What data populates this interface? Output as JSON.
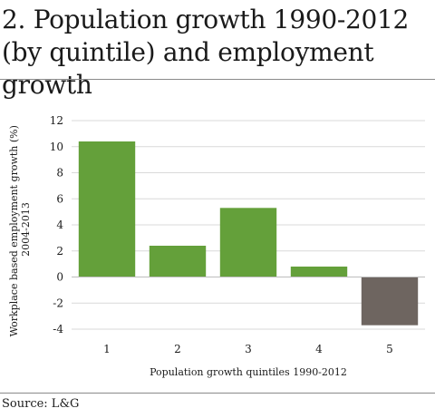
{
  "title": "2. Population growth 1990-2012 (by quintile) and employment growth",
  "source": "Source: L&G",
  "chart_data": {
    "type": "bar",
    "categories": [
      "1",
      "2",
      "3",
      "4",
      "5"
    ],
    "values": [
      10.4,
      2.4,
      5.3,
      0.8,
      -3.7
    ],
    "colors": [
      "#64a03a",
      "#64a03a",
      "#64a03a",
      "#64a03a",
      "#6e6560"
    ],
    "ylim": [
      -4,
      12
    ],
    "yticks": [
      12,
      10,
      8,
      6,
      4,
      2,
      0,
      -2,
      -4
    ],
    "xlabel": "Population growth quintiles 1990-2012",
    "ylabel_lines": [
      "Workplace based employment growth (%)",
      "2004-2013"
    ],
    "grid": true,
    "gridline_color": "#d9d9d9"
  }
}
